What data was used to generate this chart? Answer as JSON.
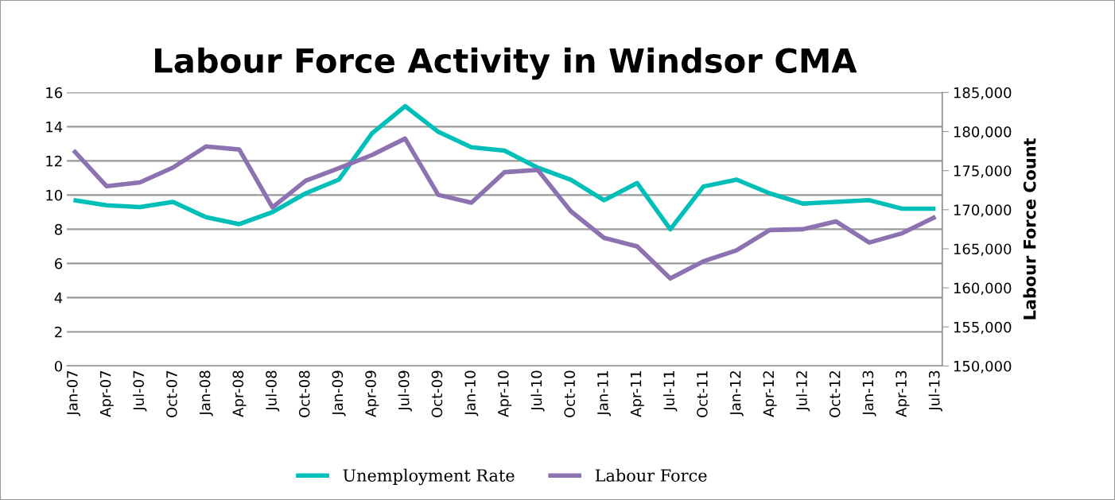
{
  "chart_data": {
    "type": "line",
    "title": "Labour Force Activity in Windsor CMA",
    "y2label": "Labour Force Count",
    "categories": [
      "Jan-07",
      "Apr-07",
      "Jul-07",
      "Oct-07",
      "Jan-08",
      "Apr-08",
      "Jul-08",
      "Oct-08",
      "Jan-09",
      "Apr-09",
      "Jul-09",
      "Oct-09",
      "Jan-10",
      "Apr-10",
      "Jul-10",
      "Oct-10",
      "Jan-11",
      "Apr-11",
      "Jul-11",
      "Oct-11",
      "Jan-12",
      "Apr-12",
      "Jul-12",
      "Oct-12",
      "Jan-13",
      "Apr-13",
      "Jul-13"
    ],
    "series": [
      {
        "name": "Unemployment Rate",
        "color": "#00bfb8",
        "values": [
          9.7,
          9.4,
          9.3,
          9.6,
          8.7,
          8.3,
          9.0,
          10.1,
          10.9,
          13.6,
          15.2,
          13.7,
          12.8,
          12.6,
          11.6,
          10.9,
          9.7,
          10.7,
          8.0,
          10.5,
          10.9,
          10.1,
          9.5,
          9.6,
          9.7,
          9.2,
          9.2
        ]
      },
      {
        "name": "Labour Force",
        "color": "#8c72b0",
        "axis": "y2",
        "values": [
          177600,
          173000,
          173500,
          175400,
          178100,
          177700,
          170300,
          173700,
          175300,
          177000,
          179100,
          171900,
          170900,
          174800,
          175100,
          169800,
          166400,
          165300,
          161200,
          163400,
          164800,
          167400,
          167500,
          168500,
          165800,
          167000,
          169100
        ]
      }
    ],
    "ylim": [
      0,
      16
    ],
    "yticks": [
      0,
      2,
      4,
      6,
      8,
      10,
      12,
      14,
      16
    ],
    "y2lim": [
      150000,
      185000
    ],
    "y2ticks": [
      {
        "value": 150000,
        "label": "150,000"
      },
      {
        "value": 155000,
        "label": "155,000"
      },
      {
        "value": 160000,
        "label": "160,000"
      },
      {
        "value": 165000,
        "label": "165,000"
      },
      {
        "value": 170000,
        "label": "170,000"
      },
      {
        "value": 175000,
        "label": "175,000"
      },
      {
        "value": 180000,
        "label": "180,000"
      },
      {
        "value": 185000,
        "label": "185,000"
      }
    ],
    "grid": "y",
    "legend": "bottom",
    "marker": "none",
    "line_style": "solid"
  }
}
